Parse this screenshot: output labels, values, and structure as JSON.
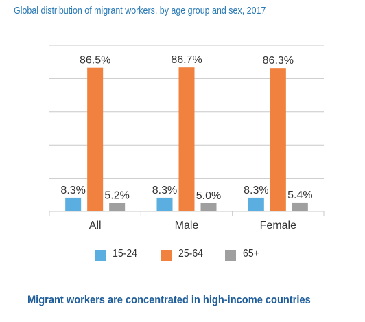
{
  "title": "Global distribution of migrant workers, by age group and sex, 2017",
  "footer": "Migrant workers are concentrated in high-income countries",
  "colors": {
    "15-24": "#5aaee0",
    "25-64": "#f0813e",
    "65+": "#9f9f9f",
    "title": "#2a7ab6",
    "grid": "#c8c8c8"
  },
  "chart_data": {
    "type": "bar",
    "categories": [
      "All",
      "Male",
      "Female"
    ],
    "series": [
      {
        "name": "15-24",
        "values": [
          8.3,
          8.3,
          8.3
        ],
        "labels": [
          "8.3%",
          "8.3%",
          "8.3%"
        ]
      },
      {
        "name": "25-64",
        "values": [
          86.5,
          86.7,
          86.3
        ],
        "labels": [
          "86.5%",
          "86.7%",
          "86.3%"
        ]
      },
      {
        "name": "65+",
        "values": [
          5.2,
          5.0,
          5.4
        ],
        "labels": [
          "5.2%",
          "5.0%",
          "5.4%"
        ]
      }
    ],
    "title": "Global distribution of migrant workers, by age group and sex, 2017",
    "xlabel": "",
    "ylabel": "",
    "ylim": [
      0,
      100
    ],
    "grid": true,
    "legend": "bottom"
  }
}
